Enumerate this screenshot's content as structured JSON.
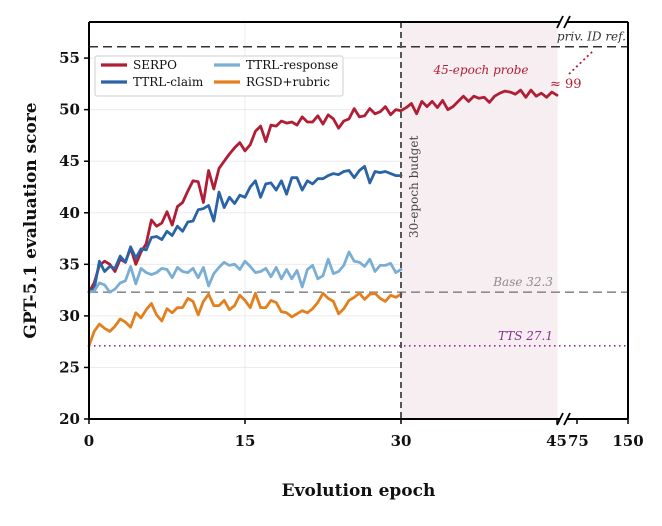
{
  "chart_data": {
    "type": "line",
    "xlabel": "Evolution epoch",
    "ylabel": "GPT-5.1 evaluation score",
    "ylim": [
      20,
      58.5
    ],
    "grid": true,
    "legend_placement": "top-left",
    "x_ticks": [
      "0",
      "15",
      "30",
      "45",
      "75",
      "150"
    ],
    "y_ticks": [
      "20",
      "25",
      "30",
      "35",
      "40",
      "45",
      "50",
      "55"
    ],
    "x_axis_break": "between 45 and 75",
    "series": [
      {
        "name": "SERPO",
        "color": "#b01e35",
        "x": [
          0,
          0.5,
          1,
          1.5,
          2,
          2.5,
          3,
          3.5,
          4,
          4.5,
          5,
          5.5,
          6,
          6.5,
          7,
          7.5,
          8,
          8.5,
          9,
          9.5,
          10,
          10.5,
          11,
          11.5,
          12,
          12.5,
          13,
          13.5,
          14,
          14.5,
          15,
          15.5,
          16,
          16.5,
          17,
          17.5,
          18,
          18.5,
          19,
          19.5,
          20,
          20.5,
          21,
          21.5,
          22,
          22.5,
          23,
          23.5,
          24,
          24.5,
          25,
          25.5,
          26,
          26.5,
          27,
          27.5,
          28,
          28.5,
          29,
          29.5,
          30,
          30.5,
          31,
          31.5,
          32,
          32.5,
          33,
          33.5,
          34,
          34.5,
          35,
          35.5,
          36,
          36.5,
          37,
          37.5,
          38,
          38.5,
          39,
          39.5,
          40,
          40.5,
          41,
          41.5,
          42,
          42.5,
          43,
          43.5,
          44,
          44.5,
          45
        ],
        "values": [
          32.3,
          33.2,
          34.9,
          35.3,
          35.0,
          34.3,
          35.5,
          35.2,
          36.6,
          35.0,
          36.2,
          37.0,
          39.3,
          38.7,
          39.0,
          40.1,
          38.8,
          40.6,
          41.0,
          42.1,
          43.1,
          43.0,
          41.0,
          44.1,
          42.3,
          44.3,
          45.0,
          45.7,
          46.3,
          46.8,
          46.0,
          46.6,
          47.9,
          48.4,
          46.9,
          48.5,
          48.4,
          48.9,
          48.7,
          48.8,
          48.5,
          49.3,
          48.8,
          48.8,
          49.4,
          48.6,
          49.5,
          49.1,
          48.2,
          48.9,
          49.1,
          50.1,
          49.3,
          49.4,
          50.1,
          49.6,
          49.8,
          50.3,
          49.5,
          50.0,
          49.9,
          50.2,
          50.6,
          49.6,
          50.8,
          50.3,
          50.8,
          50.2,
          50.9,
          50.0,
          50.3,
          50.8,
          51.3,
          50.8,
          51.3,
          51.1,
          51.2,
          50.7,
          51.3,
          51.6,
          51.8,
          51.7,
          51.5,
          51.9,
          51.2,
          51.9,
          51.3,
          51.6,
          51.2,
          51.7,
          51.4
        ]
      },
      {
        "name": "TTRL-claim",
        "color": "#2a64a7",
        "x": [
          0,
          0.5,
          1,
          1.5,
          2,
          2.5,
          3,
          3.5,
          4,
          4.5,
          5,
          5.5,
          6,
          6.5,
          7,
          7.5,
          8,
          8.5,
          9,
          9.5,
          10,
          10.5,
          11,
          11.5,
          12,
          12.5,
          13,
          13.5,
          14,
          14.5,
          15,
          15.5,
          16,
          16.5,
          17,
          17.5,
          18,
          18.5,
          19,
          19.5,
          20,
          20.5,
          21,
          21.5,
          22,
          22.5,
          23,
          23.5,
          24,
          24.5,
          25,
          25.5,
          26,
          26.5,
          27,
          27.5,
          28,
          28.5,
          29,
          29.5,
          30
        ],
        "values": [
          32.3,
          32.6,
          35.3,
          34.3,
          34.8,
          34.6,
          35.8,
          35.2,
          36.7,
          35.6,
          36.5,
          36.4,
          37.6,
          37.7,
          37.4,
          38.2,
          37.8,
          38.7,
          38.2,
          39.1,
          39.2,
          40.3,
          40.4,
          40.7,
          39.2,
          42.0,
          40.5,
          41.5,
          40.9,
          41.7,
          41.5,
          42.5,
          43.1,
          41.5,
          42.8,
          42.9,
          42.2,
          43.1,
          41.8,
          43.4,
          43.4,
          42.2,
          43.1,
          42.8,
          43.3,
          43.3,
          43.6,
          43.8,
          43.7,
          44.0,
          44.1,
          43.4,
          44.1,
          44.5,
          42.9,
          44.0,
          43.9,
          44.0,
          43.8,
          43.6,
          43.6
        ]
      },
      {
        "name": "TTRL-response",
        "color": "#7aaed5",
        "x": [
          0,
          0.5,
          1,
          1.5,
          2,
          2.5,
          3,
          3.5,
          4,
          4.5,
          5,
          5.5,
          6,
          6.5,
          7,
          7.5,
          8,
          8.5,
          9,
          9.5,
          10,
          10.5,
          11,
          11.5,
          12,
          12.5,
          13,
          13.5,
          14,
          14.5,
          15,
          15.5,
          16,
          16.5,
          17,
          17.5,
          18,
          18.5,
          19,
          19.5,
          20,
          20.5,
          21,
          21.5,
          22,
          22.5,
          23,
          23.5,
          24,
          24.5,
          25,
          25.5,
          26,
          26.5,
          27,
          27.5,
          28,
          28.5,
          29,
          29.5,
          30
        ],
        "values": [
          32.3,
          32.4,
          33.2,
          33.0,
          32.3,
          32.6,
          33.2,
          33.4,
          34.8,
          33.1,
          34.6,
          34.2,
          34.0,
          34.2,
          34.6,
          34.5,
          33.7,
          34.7,
          34.3,
          34.2,
          34.6,
          33.7,
          34.7,
          32.9,
          34.1,
          34.7,
          35.2,
          34.9,
          35.0,
          34.5,
          35.3,
          34.8,
          34.2,
          34.3,
          34.6,
          33.8,
          34.7,
          33.6,
          34.5,
          33.6,
          34.4,
          32.8,
          34.5,
          34.9,
          33.6,
          33.9,
          35.5,
          34.1,
          34.3,
          34.9,
          36.2,
          35.3,
          35.2,
          34.8,
          35.5,
          34.3,
          34.9,
          34.9,
          35.1,
          34.2,
          34.5
        ]
      },
      {
        "name": "RGSD+rubric",
        "color": "#e2801f",
        "x": [
          0,
          0.5,
          1,
          1.5,
          2,
          2.5,
          3,
          3.5,
          4,
          4.5,
          5,
          5.5,
          6,
          6.5,
          7,
          7.5,
          8,
          8.5,
          9,
          9.5,
          10,
          10.5,
          11,
          11.5,
          12,
          12.5,
          13,
          13.5,
          14,
          14.5,
          15,
          15.5,
          16,
          16.5,
          17,
          17.5,
          18,
          18.5,
          19,
          19.5,
          20,
          20.5,
          21,
          21.5,
          22,
          22.5,
          23,
          23.5,
          24,
          24.5,
          25,
          25.5,
          26,
          26.5,
          27,
          27.5,
          28,
          28.5,
          29,
          29.5,
          30
        ],
        "values": [
          27.1,
          28.5,
          29.2,
          28.8,
          28.5,
          29.0,
          29.7,
          29.4,
          28.9,
          30.3,
          29.8,
          30.6,
          31.2,
          30.1,
          29.5,
          30.7,
          30.3,
          30.8,
          30.8,
          31.7,
          31.4,
          30.1,
          31.4,
          32.1,
          31.0,
          31.0,
          31.5,
          30.6,
          31.0,
          32.0,
          31.5,
          30.8,
          32.2,
          30.8,
          30.8,
          31.5,
          31.3,
          30.4,
          30.3,
          29.9,
          30.2,
          30.5,
          30.3,
          30.7,
          31.3,
          32.2,
          31.7,
          31.4,
          30.2,
          30.7,
          31.5,
          31.8,
          32.2,
          31.6,
          32.1,
          32.2,
          31.7,
          31.4,
          32.0,
          31.8,
          32.1
        ]
      }
    ],
    "reference_lines": [
      {
        "label": "priv. ID ref.",
        "value": 56.1,
        "color": "#333333",
        "style": "dashed"
      },
      {
        "label": "Base 32.3",
        "value": 32.3,
        "color": "#8c8c8c",
        "style": "dashed"
      },
      {
        "label": "TTS 27.1",
        "value": 27.1,
        "color": "#8a2f91",
        "style": "dotted"
      }
    ],
    "vertical_marker": {
      "label": "30-epoch budget",
      "x": 30
    },
    "shaded_region": {
      "label": "45-epoch probe",
      "x_start": 30,
      "x_end": 45,
      "color": "#f6eef0"
    },
    "annotations": [
      {
        "text": "≈ 99",
        "color": "#b01e35"
      }
    ]
  }
}
